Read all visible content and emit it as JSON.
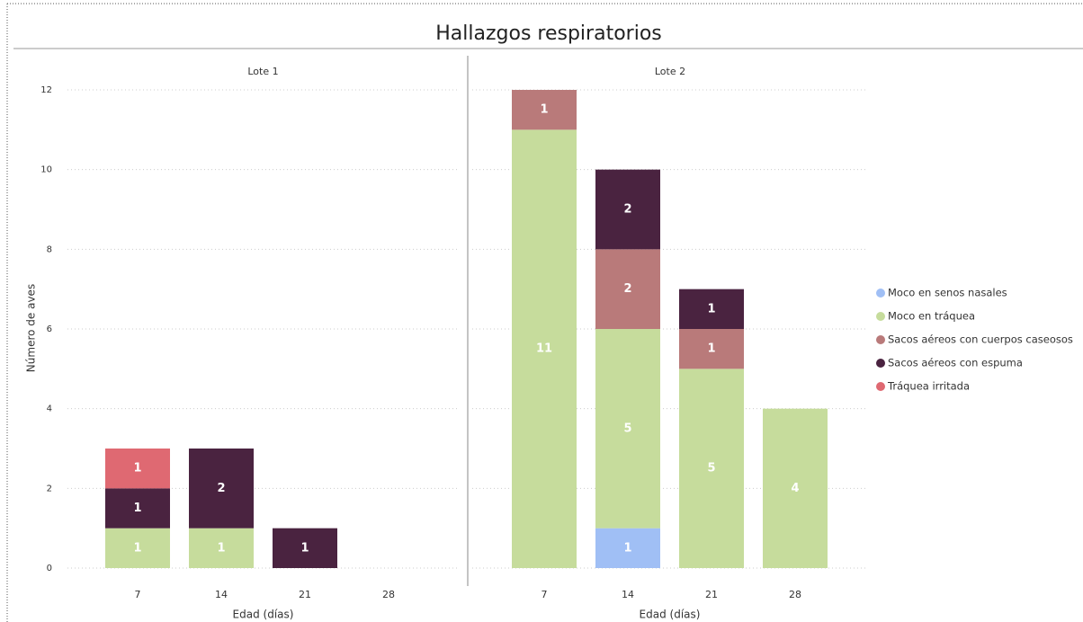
{
  "title": "Hallazgos respiratorios",
  "chart_data": [
    {
      "type": "bar",
      "stacked": true,
      "title": "Lote 1",
      "xlabel": "Edad (días)",
      "ylabel": "Número de aves",
      "categories": [
        "7",
        "14",
        "21",
        "28"
      ],
      "ylim": [
        0,
        12
      ],
      "yticks": [
        0,
        2,
        4,
        6,
        8,
        10,
        12
      ],
      "grid": true,
      "series": [
        {
          "name": "Moco en senos nasales",
          "color": "#a0bff5",
          "values": [
            null,
            null,
            null,
            null
          ]
        },
        {
          "name": "Moco en tráquea",
          "color": "#c6dc9c",
          "values": [
            1,
            1,
            null,
            null
          ]
        },
        {
          "name": "Sacos aéreos con cuerpos caseosos",
          "color": "#b97a7a",
          "values": [
            null,
            null,
            null,
            null
          ]
        },
        {
          "name": "Sacos aéreos con espuma",
          "color": "#4a2340",
          "values": [
            1,
            2,
            1,
            null
          ]
        },
        {
          "name": "Tráquea irritada",
          "color": "#df6972",
          "values": [
            1,
            null,
            null,
            null
          ]
        }
      ]
    },
    {
      "type": "bar",
      "stacked": true,
      "title": "Lote 2",
      "xlabel": "Edad (días)",
      "categories": [
        "7",
        "14",
        "21",
        "28"
      ],
      "series": [
        {
          "name": "Moco en senos nasales",
          "color": "#a0bff5",
          "values": [
            null,
            1,
            null,
            null
          ]
        },
        {
          "name": "Moco en tráquea",
          "color": "#c6dc9c",
          "values": [
            11,
            5,
            5,
            4
          ]
        },
        {
          "name": "Sacos aéreos con cuerpos caseosos",
          "color": "#b97a7a",
          "values": [
            1,
            2,
            1,
            null
          ]
        },
        {
          "name": "Sacos aéreos con espuma",
          "color": "#4a2340",
          "values": [
            null,
            2,
            1,
            null
          ]
        },
        {
          "name": "Tráquea irritada",
          "color": "#df6972",
          "values": [
            null,
            null,
            null,
            null
          ]
        }
      ]
    }
  ]
}
